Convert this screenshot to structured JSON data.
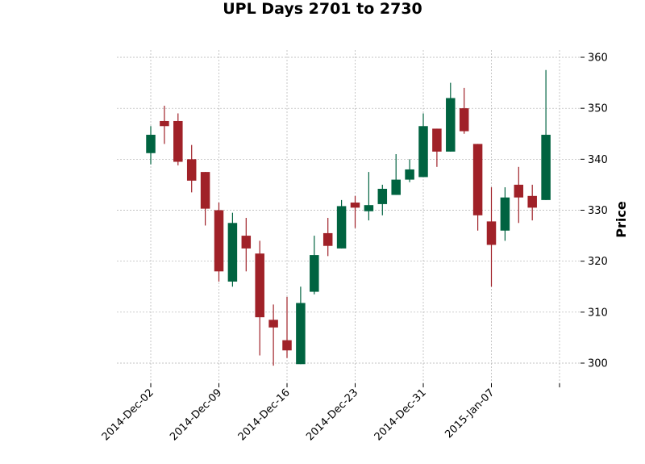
{
  "chart_data": {
    "type": "candlestick",
    "title": "UPL Days 2701 to 2730",
    "ylabel": "Price",
    "xlabel": "",
    "ylim": [
      297,
      362
    ],
    "yticks": [
      300,
      310,
      320,
      330,
      340,
      350,
      360
    ],
    "grid": true,
    "colors": {
      "up": "#006340",
      "down": "#a02128",
      "grid": "#b0b0b0"
    },
    "xtick_labels": [
      {
        "index": 0,
        "label": "2014-Dec-02"
      },
      {
        "index": 5,
        "label": "2014-Dec-09"
      },
      {
        "index": 10,
        "label": "2014-Dec-16"
      },
      {
        "index": 15,
        "label": "2014-Dec-23"
      },
      {
        "index": 20,
        "label": "2014-Dec-31"
      },
      {
        "index": 25,
        "label": "2015-Jan-07"
      },
      {
        "index": 30,
        "label": ""
      }
    ],
    "candles": [
      {
        "open": 341.2,
        "high": 346.5,
        "low": 339.0,
        "close": 344.8
      },
      {
        "open": 347.5,
        "high": 350.5,
        "low": 343.0,
        "close": 346.5
      },
      {
        "open": 347.5,
        "high": 349.0,
        "low": 338.8,
        "close": 339.5
      },
      {
        "open": 340.0,
        "high": 342.8,
        "low": 333.5,
        "close": 335.8
      },
      {
        "open": 337.5,
        "high": 337.5,
        "low": 327.0,
        "close": 330.3
      },
      {
        "open": 330.0,
        "high": 331.5,
        "low": 316.0,
        "close": 318.0
      },
      {
        "open": 316.0,
        "high": 329.5,
        "low": 315.0,
        "close": 327.5
      },
      {
        "open": 325.0,
        "high": 328.5,
        "low": 318.0,
        "close": 322.5
      },
      {
        "open": 321.5,
        "high": 324.0,
        "low": 301.5,
        "close": 309.0
      },
      {
        "open": 308.5,
        "high": 311.5,
        "low": 299.5,
        "close": 307.0
      },
      {
        "open": 304.5,
        "high": 313.0,
        "low": 301.0,
        "close": 302.5
      },
      {
        "open": 299.8,
        "high": 315.0,
        "low": 299.8,
        "close": 311.8
      },
      {
        "open": 314.0,
        "high": 325.0,
        "low": 313.5,
        "close": 321.2
      },
      {
        "open": 325.5,
        "high": 328.5,
        "low": 321.0,
        "close": 323.0
      },
      {
        "open": 322.5,
        "high": 332.0,
        "low": 322.5,
        "close": 330.8
      },
      {
        "open": 331.5,
        "high": 332.8,
        "low": 326.5,
        "close": 330.5
      },
      {
        "open": 329.8,
        "high": 337.5,
        "low": 328.0,
        "close": 331.0
      },
      {
        "open": 331.2,
        "high": 335.0,
        "low": 329.0,
        "close": 334.2
      },
      {
        "open": 333.0,
        "high": 341.0,
        "low": 333.0,
        "close": 336.0
      },
      {
        "open": 336.0,
        "high": 340.0,
        "low": 335.5,
        "close": 338.0
      },
      {
        "open": 336.5,
        "high": 349.0,
        "low": 336.5,
        "close": 346.5
      },
      {
        "open": 346.0,
        "high": 346.0,
        "low": 338.5,
        "close": 341.5
      },
      {
        "open": 341.5,
        "high": 355.0,
        "low": 341.5,
        "close": 352.0
      },
      {
        "open": 350.0,
        "high": 354.0,
        "low": 345.0,
        "close": 345.5
      },
      {
        "open": 343.0,
        "high": 343.0,
        "low": 326.0,
        "close": 329.0
      },
      {
        "open": 327.8,
        "high": 334.5,
        "low": 315.0,
        "close": 323.2
      },
      {
        "open": 326.0,
        "high": 334.5,
        "low": 324.0,
        "close": 332.5
      },
      {
        "open": 335.0,
        "high": 338.5,
        "low": 327.5,
        "close": 332.5
      },
      {
        "open": 332.8,
        "high": 335.0,
        "low": 328.0,
        "close": 330.5
      },
      {
        "open": 332.0,
        "high": 357.5,
        "low": 332.0,
        "close": 344.8
      }
    ]
  }
}
